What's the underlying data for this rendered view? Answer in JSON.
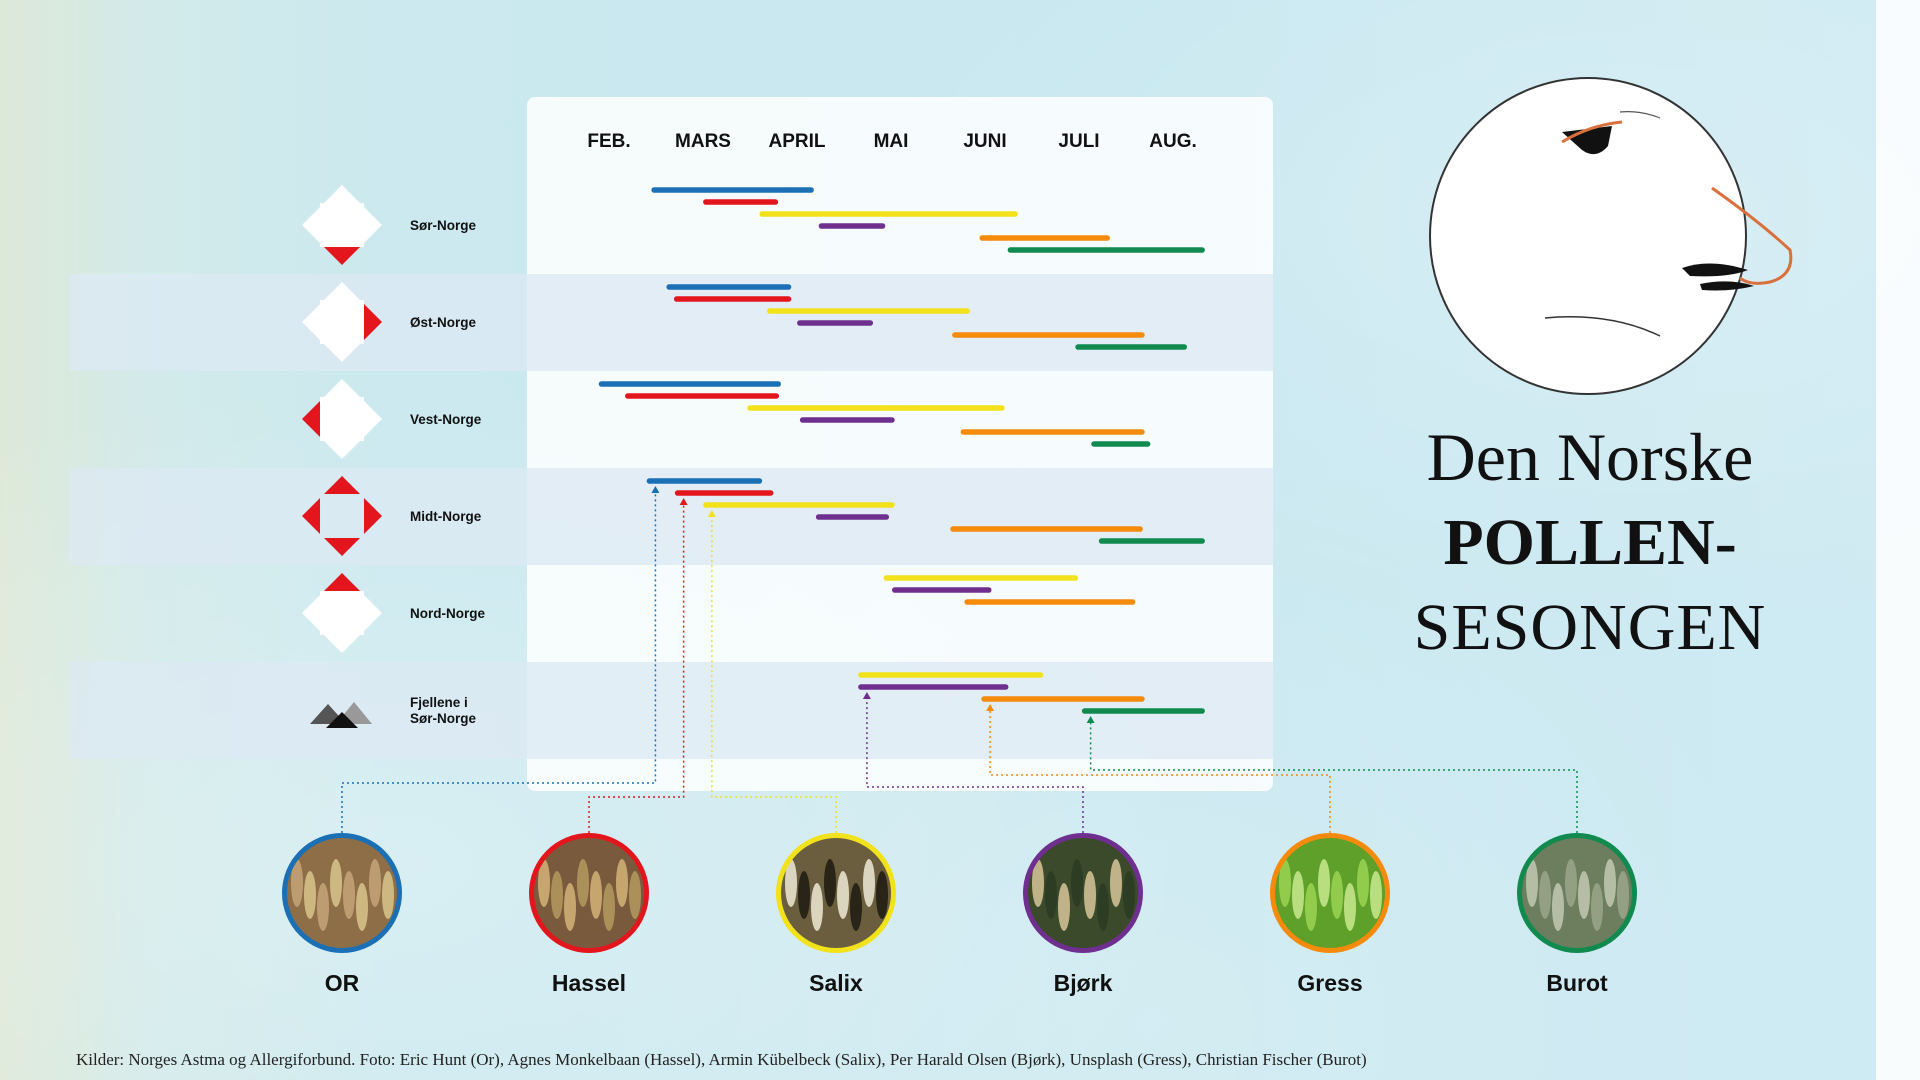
{
  "title": {
    "line1": "Den Norske",
    "line2": "POLLEN-",
    "line3": "SESONGEN"
  },
  "source": "Kilder: Norges Astma og Allergiforbund. Foto: Eric Hunt (Or), Agnes Monkelbaan (Hassel), Armin Kübelbeck (Salix), Per Harald Olsen (Bjørk), Unsplash (Gress), Christian Fischer (Burot)",
  "chart_data": {
    "type": "gantt",
    "title": "Den Norske POLLEN-SESONGEN",
    "months": [
      "FEB.",
      "MARS",
      "APRIL",
      "MAI",
      "JUNI",
      "JULI",
      "AUG."
    ],
    "x_unit": "month (1 = FEB., 7 = AUG.)",
    "grid": false,
    "series": [
      {
        "name": "OR",
        "color": "#1a6fb5"
      },
      {
        "name": "Hassel",
        "color": "#e3161d"
      },
      {
        "name": "Salix",
        "color": "#f2e21a"
      },
      {
        "name": "Bjørk",
        "color": "#6e2f8f"
      },
      {
        "name": "Gress",
        "color": "#f58a0b"
      },
      {
        "name": "Burot",
        "color": "#108a4e"
      }
    ],
    "regions": [
      {
        "name": "Sør-Norge",
        "marks": [
          "bottom"
        ],
        "periods": [
          {
            "series": 0,
            "start": 1.48,
            "end": 3.15
          },
          {
            "series": 1,
            "start": 2.03,
            "end": 2.77
          },
          {
            "series": 2,
            "start": 2.63,
            "end": 5.32
          },
          {
            "series": 3,
            "start": 3.26,
            "end": 3.91
          },
          {
            "series": 4,
            "start": 4.97,
            "end": 6.3
          },
          {
            "series": 5,
            "start": 5.27,
            "end": 7.31
          }
        ]
      },
      {
        "name": "Øst-Norge",
        "marks": [
          "right"
        ],
        "periods": [
          {
            "series": 0,
            "start": 1.64,
            "end": 2.91
          },
          {
            "series": 1,
            "start": 1.72,
            "end": 2.91
          },
          {
            "series": 2,
            "start": 2.71,
            "end": 4.81
          },
          {
            "series": 3,
            "start": 3.03,
            "end": 3.78
          },
          {
            "series": 4,
            "start": 4.68,
            "end": 6.67
          },
          {
            "series": 5,
            "start": 5.99,
            "end": 7.12
          }
        ]
      },
      {
        "name": "Vest-Norge",
        "marks": [
          "left"
        ],
        "periods": [
          {
            "series": 0,
            "start": 0.92,
            "end": 2.8
          },
          {
            "series": 1,
            "start": 1.2,
            "end": 2.78
          },
          {
            "series": 2,
            "start": 2.5,
            "end": 5.18
          },
          {
            "series": 3,
            "start": 3.06,
            "end": 4.01
          },
          {
            "series": 4,
            "start": 4.77,
            "end": 6.67
          },
          {
            "series": 5,
            "start": 6.16,
            "end": 6.73
          }
        ]
      },
      {
        "name": "Midt-Norge",
        "marks": [
          "top",
          "right",
          "bottom",
          "left"
        ],
        "periods": [
          {
            "series": 0,
            "start": 1.43,
            "end": 2.6
          },
          {
            "series": 1,
            "start": 1.73,
            "end": 2.72
          },
          {
            "series": 2,
            "start": 2.03,
            "end": 4.01
          },
          {
            "series": 3,
            "start": 3.23,
            "end": 3.95
          },
          {
            "series": 4,
            "start": 4.66,
            "end": 6.65
          },
          {
            "series": 5,
            "start": 6.24,
            "end": 7.31
          }
        ]
      },
      {
        "name": "Nord-Norge",
        "marks": [
          "top"
        ],
        "periods": [
          {
            "series": 2,
            "start": 3.95,
            "end": 5.96
          },
          {
            "series": 3,
            "start": 4.04,
            "end": 5.04
          },
          {
            "series": 4,
            "start": 4.81,
            "end": 6.57
          }
        ]
      },
      {
        "name": "Fjellene i Sør-Norge",
        "marks": [
          "mountains"
        ],
        "periods": [
          {
            "series": 2,
            "start": 3.68,
            "end": 5.59
          },
          {
            "series": 3,
            "start": 3.68,
            "end": 5.22
          },
          {
            "series": 4,
            "start": 4.99,
            "end": 6.67
          },
          {
            "series": 5,
            "start": 6.06,
            "end": 7.31
          }
        ]
      }
    ],
    "legend": [
      "OR",
      "Hassel",
      "Salix",
      "Bjørk",
      "Gress",
      "Burot"
    ],
    "legend_position": "bottom"
  }
}
